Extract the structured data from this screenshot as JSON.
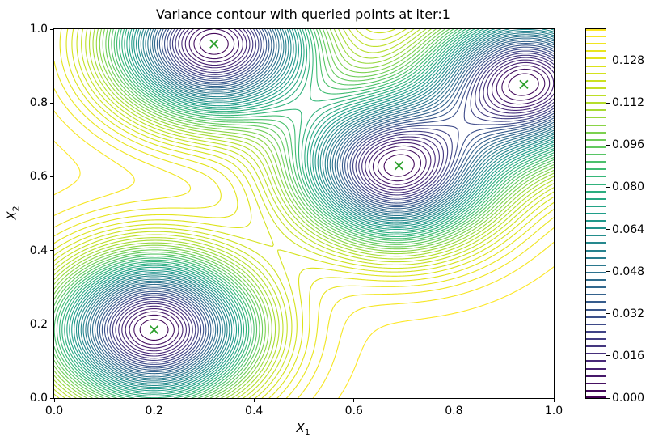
{
  "chart_data": {
    "type": "contour",
    "title": "Variance contour with queried points at iter:1",
    "xlabel": {
      "base": "X",
      "sub": "1"
    },
    "ylabel": {
      "base": "X",
      "sub": "2"
    },
    "xlim": [
      0.0,
      1.0
    ],
    "ylim": [
      0.0,
      1.0
    ],
    "xticks": [
      "0.0",
      "0.2",
      "0.4",
      "0.6",
      "0.8",
      "1.0"
    ],
    "yticks": [
      "0.0",
      "0.2",
      "0.4",
      "0.6",
      "0.8",
      "1.0"
    ],
    "grid": false,
    "legend": "none",
    "queried_points": [
      [
        0.32,
        0.96
      ],
      [
        0.94,
        0.85
      ],
      [
        0.69,
        0.63
      ],
      [
        0.2,
        0.185
      ]
    ],
    "marker": {
      "symbol": "x",
      "color": "#2ca02c",
      "size": 10
    },
    "levels": {
      "min": 0.0,
      "max": 0.14,
      "count": 51
    },
    "colormap": {
      "name": "viridis",
      "stops": [
        "#440154",
        "#482878",
        "#3e4a89",
        "#31688e",
        "#26828e",
        "#1f9e89",
        "#35b779",
        "#6ece58",
        "#b5de2b",
        "#dce319",
        "#fde725"
      ]
    },
    "colorbar": {
      "tick_labels": [
        "0.000",
        "0.016",
        "0.032",
        "0.048",
        "0.064",
        "0.080",
        "0.096",
        "0.112",
        "0.128"
      ]
    },
    "surface": {
      "model": "gp_posterior_variance",
      "kernel": "rbf",
      "lengthscale": 0.2,
      "prior_variance": 0.142
    }
  }
}
